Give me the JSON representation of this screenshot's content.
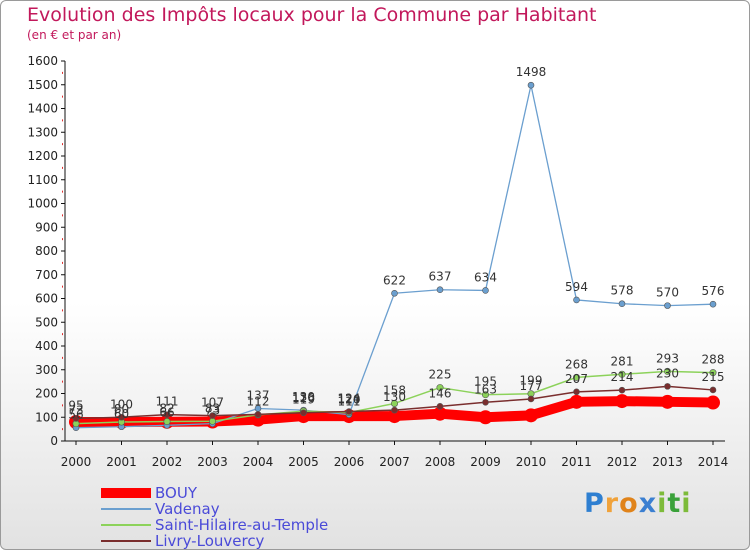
{
  "title": "Evolution des Impôts locaux pour la Commune par Habitant",
  "subtitle": "(en € et par an)",
  "brand": {
    "letters": [
      "P",
      "r",
      "o",
      "x",
      "i",
      "t",
      "i"
    ],
    "colors": [
      "#2e7fd1",
      "#f0a23a",
      "#e0831a",
      "#3b7fd1",
      "#7dbb3a",
      "#3aa13a",
      "#7dbb3a"
    ]
  },
  "chart_data": {
    "type": "line",
    "title": "Evolution des Impôts locaux pour la Commune par Habitant",
    "subtitle": "(en € et par an)",
    "x": [
      "2000",
      "2001",
      "2002",
      "2003",
      "2004",
      "2005",
      "2006",
      "2007",
      "2008",
      "2009",
      "2010",
      "2011",
      "2012",
      "2013",
      "2014"
    ],
    "ylim": [
      0,
      1600
    ],
    "yticks": [
      0,
      100,
      200,
      300,
      400,
      500,
      600,
      700,
      800,
      900,
      1000,
      1100,
      1200,
      1300,
      1400,
      1500,
      1600
    ],
    "grid": false,
    "legend_position": "bottom-left",
    "series": [
      {
        "name": "BOUY",
        "color": "#ff0000",
        "values": [
          80,
          80,
          81,
          82,
          90,
          105,
          105,
          105,
          115,
          100,
          108,
          165,
          168,
          165,
          162
        ]
      },
      {
        "name": "Vadenay",
        "color": "#6b9fcf",
        "values": [
          56,
          60,
          66,
          73,
          137,
          130,
          111,
          622,
          637,
          634,
          1498,
          594,
          578,
          570,
          576
        ]
      },
      {
        "name": "Saint-Hilaire-au-Temple",
        "color": "#8cd25a",
        "values": [
          73,
          80,
          82,
          83,
          110,
          126,
          120,
          158,
          225,
          195,
          199,
          268,
          281,
          293,
          288
        ]
      },
      {
        "name": "Livry-Louvercy",
        "color": "#7a2e2e",
        "values": [
          95,
          100,
          111,
          107,
          112,
          119,
          124,
          130,
          146,
          163,
          177,
          207,
          214,
          230,
          215
        ]
      }
    ],
    "value_labels": [
      [
        "",
        "",
        "",
        "",
        "",
        "",
        "",
        "",
        "",
        "",
        "",
        "",
        "",
        "",
        ""
      ],
      [
        "56",
        "60",
        "66",
        "73",
        "137",
        "130",
        "111",
        "622",
        "637",
        "634",
        "1498",
        "594",
        "578",
        "570",
        "576"
      ],
      [
        "73",
        "80",
        "82",
        "83",
        "",
        "126",
        "120",
        "158",
        "225",
        "195",
        "199",
        "268",
        "281",
        "293",
        "288"
      ],
      [
        "95",
        "100",
        "111",
        "107",
        "112",
        "119",
        "124",
        "130",
        "146",
        "163",
        "177",
        "207",
        "214",
        "230",
        "215"
      ]
    ]
  }
}
